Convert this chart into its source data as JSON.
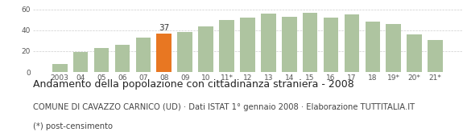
{
  "categories": [
    "2003",
    "04",
    "05",
    "06",
    "07",
    "08",
    "09",
    "10",
    "11*",
    "12",
    "13",
    "14",
    "15",
    "16",
    "17",
    "18",
    "19*",
    "20*",
    "21*"
  ],
  "values": [
    8,
    19,
    23,
    26,
    33,
    37,
    38,
    44,
    50,
    52,
    56,
    53,
    57,
    52,
    55,
    48,
    46,
    36,
    31
  ],
  "highlight_index": 5,
  "highlight_value": 37,
  "bar_color": "#aec4a0",
  "highlight_color": "#e87722",
  "ylim": [
    0,
    65
  ],
  "yticks": [
    0,
    20,
    40,
    60
  ],
  "title": "Andamento della popolazione con cittadinanza straniera - 2008",
  "subtitle": "COMUNE DI CAVAZZO CARNICO (UD) · Dati ISTAT 1° gennaio 2008 · Elaborazione TUTTITALIA.IT",
  "footnote": "(*) post-censimento",
  "title_fontsize": 9.0,
  "subtitle_fontsize": 7.2,
  "footnote_fontsize": 7.2,
  "tick_fontsize": 6.5,
  "annotation_fontsize": 7.5,
  "bg_color": "#ffffff"
}
